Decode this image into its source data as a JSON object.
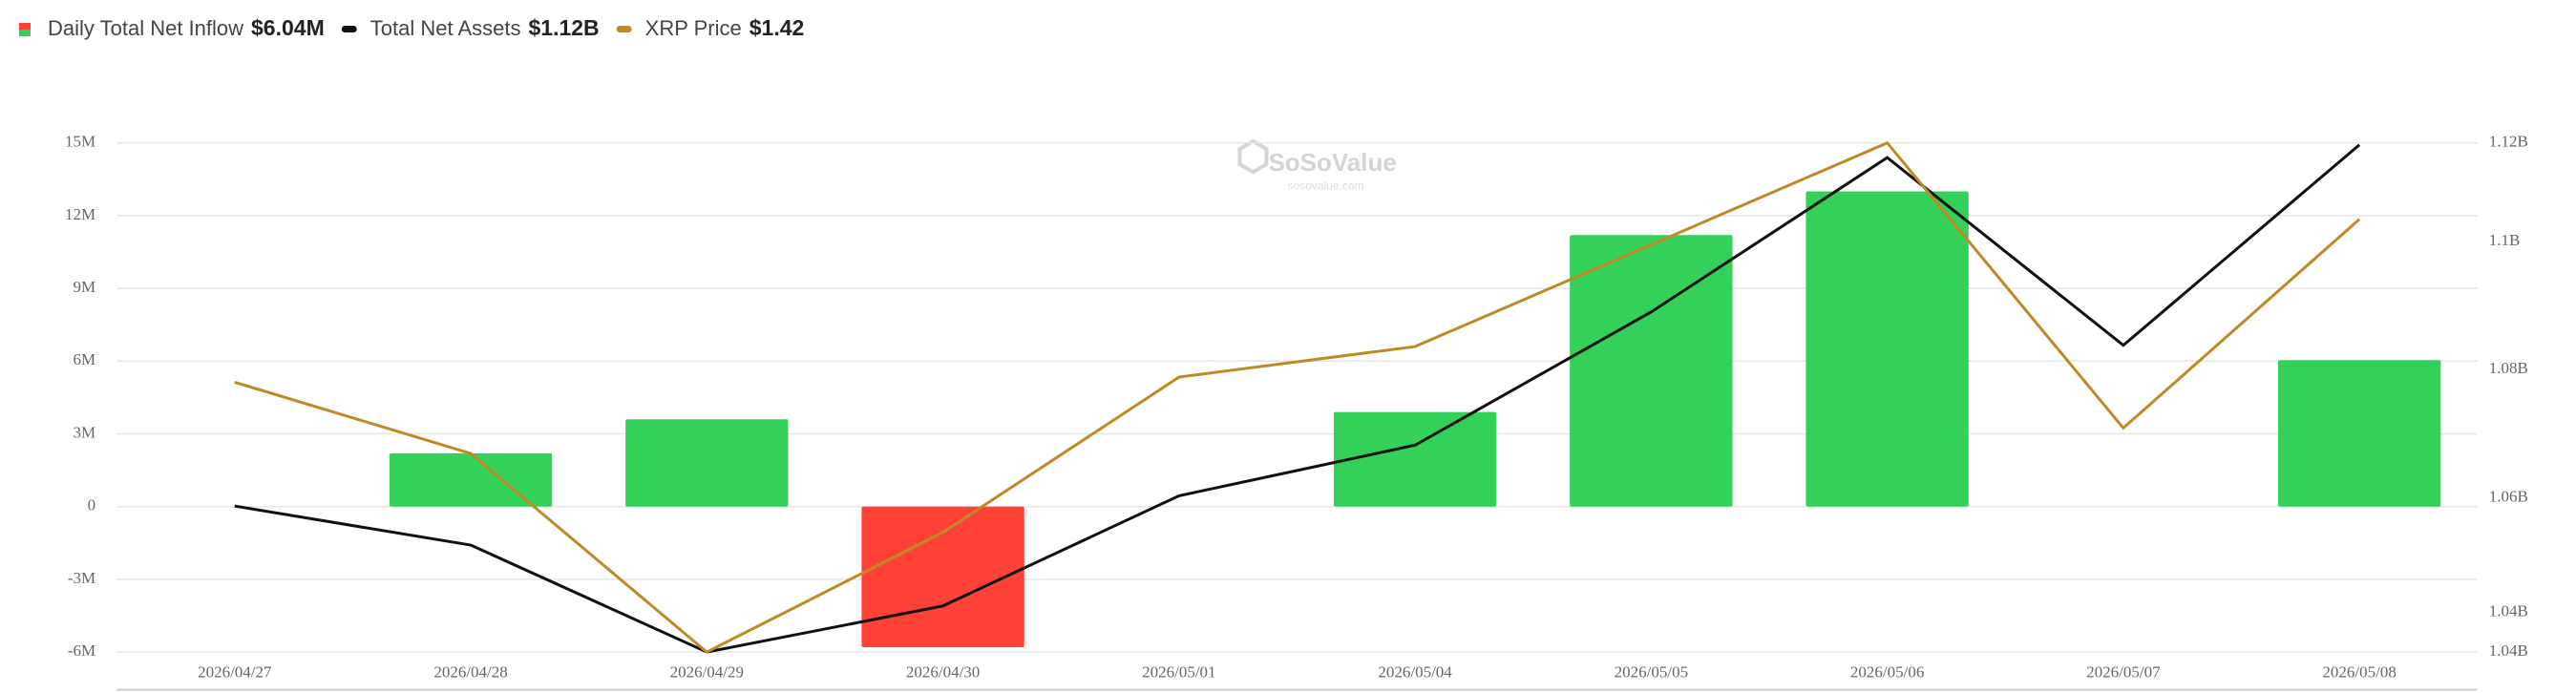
{
  "chart_data": {
    "type": "bar",
    "legend": [
      {
        "name": "Daily Total Net Inflow",
        "value": "$6.04M"
      },
      {
        "name": "Total Net Assets",
        "value": "$1.12B"
      },
      {
        "name": "XRP Price",
        "value": "$1.42"
      }
    ],
    "watermark": "SoSoValue",
    "watermark_sub": "sosovalue.com",
    "categories": [
      "2026/04/27",
      "2026/04/28",
      "2026/04/29",
      "2026/04/30",
      "2026/05/01",
      "2026/05/04",
      "2026/05/05",
      "2026/05/06",
      "2026/05/07",
      "2026/05/08"
    ],
    "series": [
      {
        "name": "Daily Total Net Inflow",
        "type": "bar",
        "color": "#33d15a",
        "negative_color": "#ff4136",
        "values": [
          null,
          2.2,
          3.6,
          -5.8,
          null,
          3.9,
          11.2,
          13.0,
          null,
          6.04
        ]
      },
      {
        "name": "Total Net Assets",
        "type": "line",
        "axis": "y2",
        "color": "#111111",
        "values": [
          1.0587,
          1.0526,
          1.0359,
          1.0431,
          1.0603,
          1.0682,
          1.089,
          1.1131,
          1.0838,
          1.1151
        ]
      },
      {
        "name": "XRP Price",
        "type": "line",
        "axis": "y3",
        "color": "#bf8a26",
        "values": [
          1.356,
          1.328,
          1.25,
          1.297,
          1.358,
          1.37,
          1.41,
          1.45,
          1.338,
          1.42
        ]
      }
    ],
    "ylim": [
      -6,
      15
    ],
    "yticks": [
      {
        "value": -6,
        "label": "-6M"
      },
      {
        "value": -3,
        "label": "-3M"
      },
      0,
      {
        "value": 3,
        "label": "3M"
      },
      {
        "value": 6,
        "label": "6M"
      },
      {
        "value": 9,
        "label": "9M"
      },
      {
        "value": 12,
        "label": "12M"
      },
      {
        "value": 15,
        "label": "15M"
      }
    ],
    "y2lim": [
      1.0359,
      1.1154
    ],
    "y2ticks": [
      {
        "value": 1.0359,
        "label": "1.04B"
      },
      {
        "value": 1.04,
        "label": "1.04B"
      },
      {
        "value": 1.06,
        "label": "1.06B"
      },
      {
        "value": 1.08,
        "label": "1.08B"
      },
      {
        "value": 1.1,
        "label": "1.1B"
      },
      {
        "value": 1.1154,
        "label": "1.12B"
      }
    ],
    "y3lim": [
      1.25,
      1.45
    ],
    "grid": true
  }
}
